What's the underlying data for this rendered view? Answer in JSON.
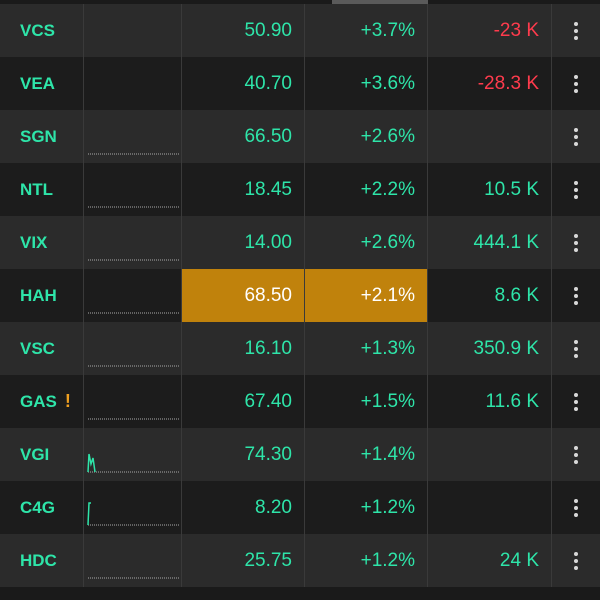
{
  "colors": {
    "up": "#2ee5a9",
    "down": "#ff3b4d",
    "highlight": "#c0820c",
    "row_odd": "#2b2b2b",
    "row_even": "#1c1c1c",
    "warning": "#f0a020"
  },
  "rows": [
    {
      "symbol": "VCS",
      "price": "50.90",
      "change": "+3.7%",
      "volume": "-23 K",
      "volume_negative": true,
      "warning": "",
      "sparkline": "none"
    },
    {
      "symbol": "VEA",
      "price": "40.70",
      "change": "+3.6%",
      "volume": "-28.3 K",
      "volume_negative": true,
      "warning": "",
      "sparkline": "none"
    },
    {
      "symbol": "SGN",
      "price": "66.50",
      "change": "+2.6%",
      "volume": "",
      "volume_negative": false,
      "warning": "",
      "sparkline": "flat"
    },
    {
      "symbol": "NTL",
      "price": "18.45",
      "change": "+2.2%",
      "volume": "10.5 K",
      "volume_negative": false,
      "warning": "",
      "sparkline": "flat"
    },
    {
      "symbol": "VIX",
      "price": "14.00",
      "change": "+2.6%",
      "volume": "444.1 K",
      "volume_negative": false,
      "warning": "",
      "sparkline": "flat"
    },
    {
      "symbol": "HAH",
      "price": "68.50",
      "change": "+2.1%",
      "volume": "8.6 K",
      "volume_negative": false,
      "warning": "",
      "sparkline": "flat",
      "highlighted": true
    },
    {
      "symbol": "VSC",
      "price": "16.10",
      "change": "+1.3%",
      "volume": "350.9 K",
      "volume_negative": false,
      "warning": "",
      "sparkline": "flat"
    },
    {
      "symbol": "GAS",
      "price": "67.40",
      "change": "+1.5%",
      "volume": "11.6 K",
      "volume_negative": false,
      "warning": "!",
      "sparkline": "flat"
    },
    {
      "symbol": "VGI",
      "price": "74.30",
      "change": "+1.4%",
      "volume": "",
      "volume_negative": false,
      "warning": "",
      "sparkline": "spike"
    },
    {
      "symbol": "C4G",
      "price": "8.20",
      "change": "+1.2%",
      "volume": "",
      "volume_negative": false,
      "warning": "",
      "sparkline": "spike2"
    },
    {
      "symbol": "HDC",
      "price": "25.75",
      "change": "+1.2%",
      "volume": "24 K",
      "volume_negative": false,
      "warning": "",
      "sparkline": "flat"
    }
  ]
}
